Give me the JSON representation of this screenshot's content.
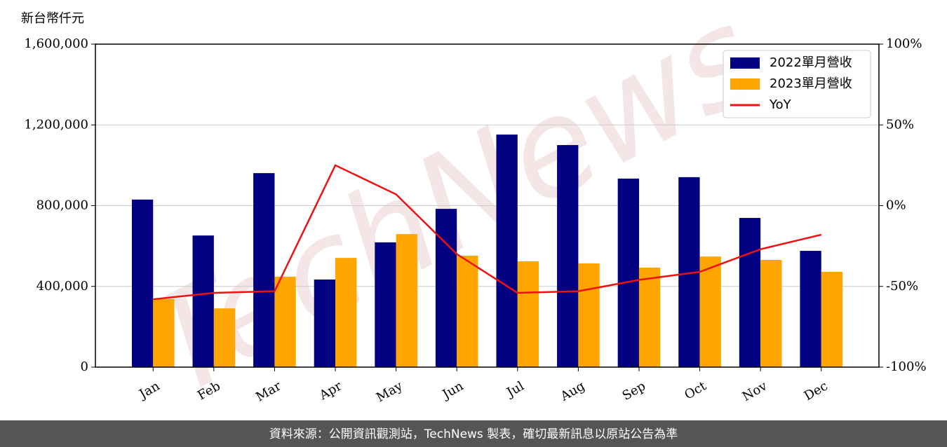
{
  "chart_data": {
    "type": "bar",
    "ylabel": "新台幣仟元",
    "watermark": "TechNews",
    "footer": "資料來源：公開資訊觀測站，TechNews 製表，確切最新訊息以原站公告為準",
    "categories": [
      "Jan",
      "Feb",
      "Mar",
      "Apr",
      "May",
      "Jun",
      "Jul",
      "Aug",
      "Sep",
      "Oct",
      "Nov",
      "Dec"
    ],
    "series": [
      {
        "name": "2022單月營收",
        "color": "#000080",
        "values": [
          830000,
          652000,
          961000,
          434000,
          618000,
          784000,
          1152000,
          1100000,
          934000,
          941000,
          739000,
          576000
        ]
      },
      {
        "name": "2023單月營收",
        "color": "#ffa500",
        "values": [
          337000,
          291000,
          448000,
          541000,
          659000,
          552000,
          524000,
          514000,
          493000,
          548000,
          531000,
          472000
        ]
      },
      {
        "name": "YoY",
        "color": "#ee1111",
        "type": "line",
        "axis": "y2",
        "values": [
          -58,
          -54,
          -53,
          25,
          7,
          -30,
          -54,
          -53,
          -46,
          -41,
          -27,
          -18
        ]
      }
    ],
    "ylim": [
      0,
      1600000
    ],
    "yticks": [
      0,
      {
        "value": 400000,
        "label": "400,000"
      },
      {
        "value": 800000,
        "label": "800,000"
      },
      {
        "value": 1200000,
        "label": "1,200,000"
      },
      {
        "value": 1600000,
        "label": "1,600,000"
      }
    ],
    "y2lim": [
      -100,
      100
    ],
    "y2ticks": [
      {
        "value": -100,
        "label": "-100%"
      },
      {
        "value": -50,
        "label": "-50%"
      },
      {
        "value": 0,
        "label": "0%"
      },
      {
        "value": 50,
        "label": "50%"
      },
      {
        "value": 100,
        "label": "100%"
      }
    ],
    "grid": true,
    "legend": "upper right"
  }
}
